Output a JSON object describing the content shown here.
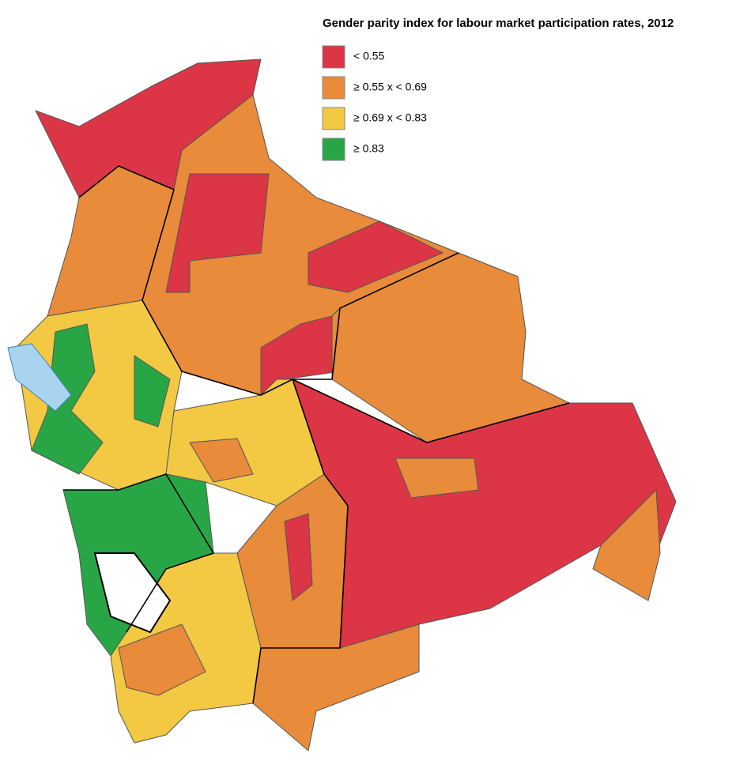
{
  "title": "Gender parity index for labour market participation rates, 2012",
  "legend": [
    {
      "label": "< 0.55",
      "color": "#dc3545"
    },
    {
      "label": "≥ 0.55 x < 0.69",
      "color": "#e88b3a"
    },
    {
      "label": "≥ 0.69 x < 0.83",
      "color": "#f3c843"
    },
    {
      "label": "≥ 0.83",
      "color": "#28a645"
    }
  ]
}
